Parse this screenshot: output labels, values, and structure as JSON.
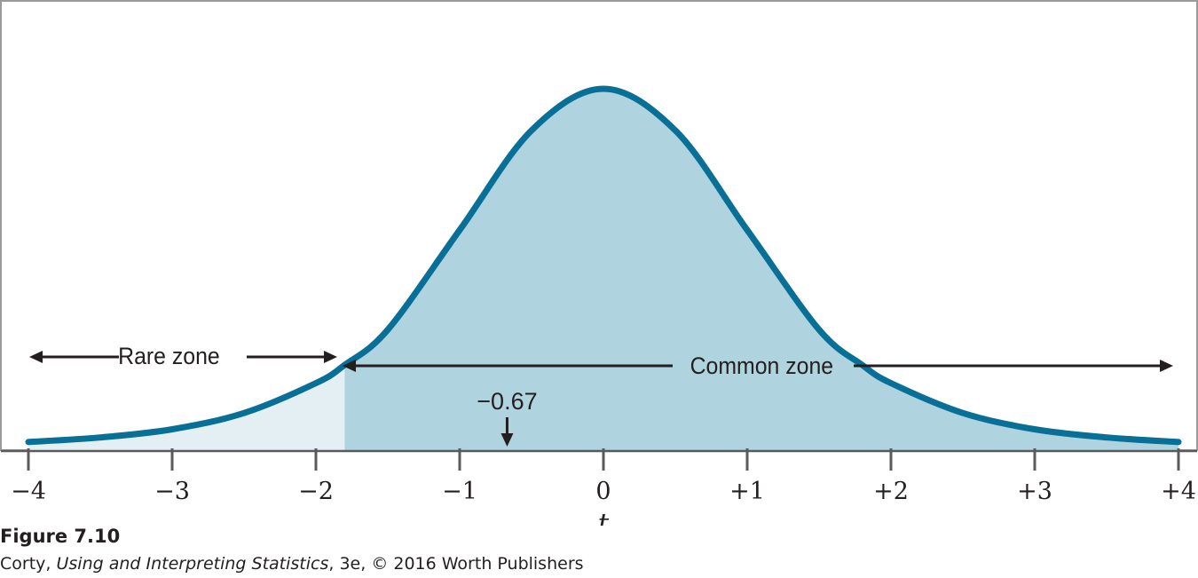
{
  "chart_data": {
    "type": "area",
    "distribution": "t",
    "x": [
      -4,
      -3.5,
      -3,
      -2.5,
      -2,
      -1.8,
      -1.5,
      -1,
      -0.5,
      0,
      0.5,
      1,
      1.5,
      1.8,
      2,
      2.5,
      3,
      3.5,
      4
    ],
    "y": [
      0.009,
      0.014,
      0.023,
      0.041,
      0.074,
      0.094,
      0.133,
      0.243,
      0.353,
      0.399,
      0.353,
      0.243,
      0.133,
      0.094,
      0.074,
      0.041,
      0.023,
      0.014,
      0.009
    ],
    "xlim": [
      -4,
      4
    ],
    "xticks": [
      -4,
      -3,
      -2,
      -1,
      0,
      1,
      2,
      3,
      4
    ],
    "xtick_labels": [
      "−4",
      "−3",
      "−2",
      "−1",
      "0",
      "+1",
      "+2",
      "+3",
      "+4"
    ],
    "xlabel": "t",
    "critical_value": -1.8,
    "observed_value": -0.67,
    "observed_label": "−0.67",
    "regions": [
      {
        "name": "Rare zone",
        "from": -4,
        "to": -1.8,
        "color": "#e3eff3"
      },
      {
        "name": "Common zone",
        "from": -1.8,
        "to": 4,
        "color": "#afd3df"
      }
    ],
    "curve_color": "#086f96"
  },
  "caption": {
    "figure_label": "Figure 7.10",
    "author": "Corty, ",
    "book_title": "Using and Interpreting Statistics",
    "edition_suffix": ", 3e, © 2016 Worth Publishers"
  }
}
